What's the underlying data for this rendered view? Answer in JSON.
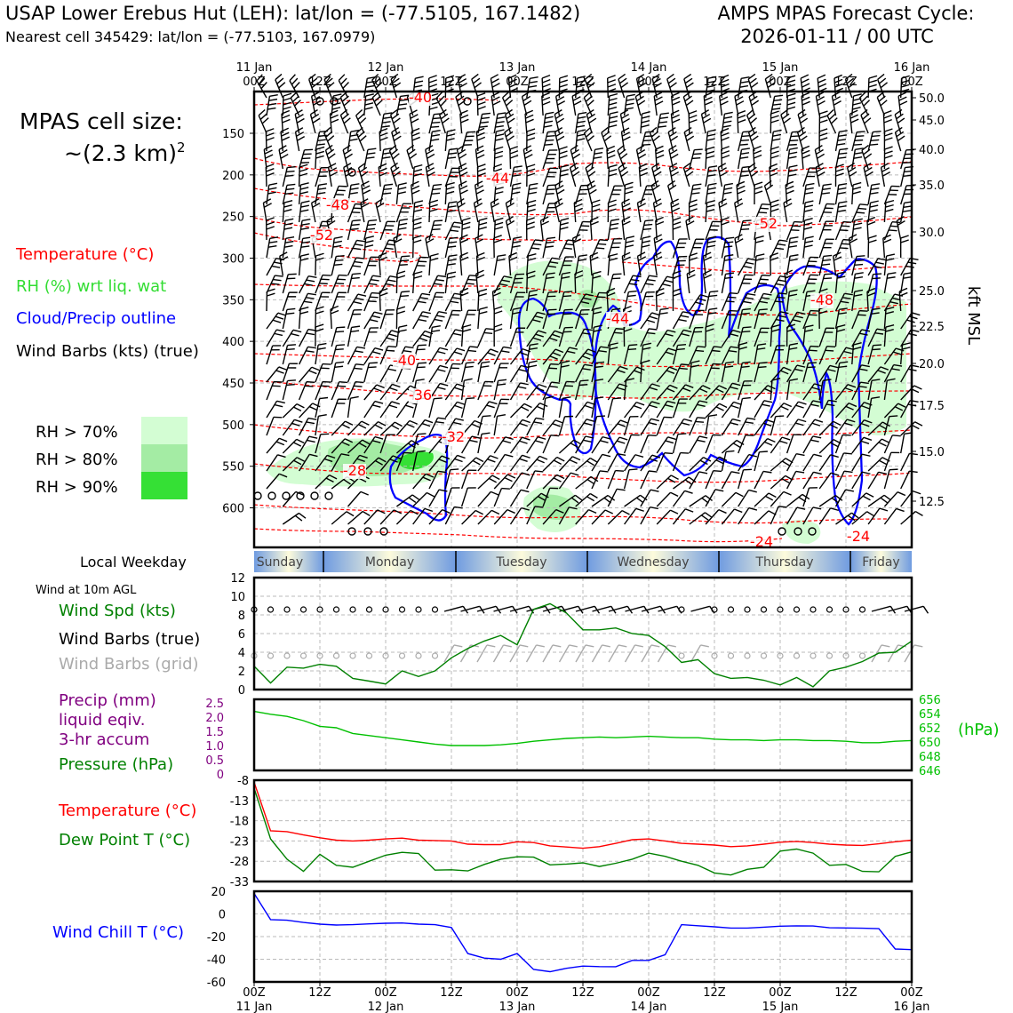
{
  "header": {
    "title_left": "USAP Lower Erebus Hut (LEH): lat/lon = (-77.5105, 167.1482)",
    "subtitle_left": "Nearest cell 345429: lat/lon = (-77.5103, 167.0979)",
    "title_right_1": "AMPS MPAS Forecast Cycle:",
    "title_right_2": "2026-01-11 / 00 UTC"
  },
  "cell_size": {
    "line1": "MPAS cell size:",
    "line2": "~(2.3 km)",
    "sup": "2"
  },
  "legend_top": {
    "temperature": "Temperature (°C)",
    "rh": "RH (%) wrt liq. wat",
    "cloud": "Cloud/Precip outline",
    "barbs": "Wind Barbs (kts) (true)"
  },
  "rh_legend": [
    {
      "label": "RH > 70%",
      "color": "#d3fdd3"
    },
    {
      "label": "RH > 80%",
      "color": "#a4eca4"
    },
    {
      "label": "RH > 90%",
      "color": "#35e035"
    }
  ],
  "colors": {
    "temp": "#ff0000",
    "rh": "#33dd33",
    "cloud": "#0000ff",
    "green": "#008000",
    "purple": "#800080",
    "gray": "#aaaaaa",
    "pressure_axis": "#00c000",
    "windchill": "#0000ff"
  },
  "time_axis": {
    "top_dates": [
      "11 Jan\n00Z",
      "",
      "12 Jan\n00Z",
      "",
      "13 Jan\n00Z",
      "",
      "14 Jan\n00Z",
      "",
      "15 Jan\n00Z",
      "",
      "16 Jan\n00Z"
    ],
    "top_hours": [
      "00Z",
      "12Z",
      "00Z",
      "12Z",
      "00Z",
      "12Z",
      "00Z",
      "12Z",
      "00Z",
      "12Z",
      "00Z"
    ],
    "bottom_hours": [
      "00Z",
      "12Z",
      "00Z",
      "12Z",
      "00Z",
      "12Z",
      "00Z",
      "12Z",
      "00Z",
      "12Z",
      "00Z"
    ],
    "date_labels": [
      "11 Jan",
      "12 Jan",
      "13 Jan",
      "14 Jan",
      "15 Jan",
      "16 Jan"
    ]
  },
  "weekday": {
    "title": "Local Weekday",
    "days": [
      "Sunday",
      "Monday",
      "Tuesday",
      "Wednesday",
      "Thursday",
      "Friday"
    ]
  },
  "sfc_labels": {
    "wind_at": "Wind at 10m AGL",
    "spd": "Wind Spd (kts)",
    "barbs": "Wind Barbs (true)",
    "barbs_grid": "Wind Barbs (grid)",
    "precip1": "Precip (mm)",
    "precip2": "liquid eqiv.",
    "precip3": "3-hr accum",
    "pressure": "Pressure (hPa)",
    "hpa": "(hPa)",
    "temp": "Temperature (°C)",
    "dew": "Dew Point T (°C)",
    "windchill": "Wind Chill T (°C)"
  },
  "chart_data": [
    {
      "type": "heatmap",
      "name": "time-height cross section",
      "y_left_ticks_hpa": [
        150,
        200,
        250,
        300,
        350,
        400,
        450,
        500,
        550,
        600
      ],
      "y_right_ticks_kft": [
        "50.0",
        "45.0",
        "40.0",
        "35.0",
        "30.0",
        "25.0",
        "22.5",
        "20.0",
        "17.5",
        "15.0",
        "12.5"
      ],
      "y_right_label": "kft MSL",
      "temperature_contour_labels": [
        "-40",
        "-44",
        "-48",
        "-52",
        "-52",
        "-44",
        "-48",
        "-40",
        "-36",
        "-32",
        "-28",
        "-24",
        "-24"
      ]
    },
    {
      "type": "line",
      "name": "wind speed",
      "x_hours": [
        0,
        3,
        6,
        9,
        12,
        15,
        18,
        21,
        24,
        27,
        30,
        33,
        36,
        39,
        42,
        45,
        48,
        51,
        54,
        57,
        60,
        63,
        66,
        69,
        72,
        75,
        78,
        81,
        84,
        87,
        90,
        93,
        96,
        99,
        102,
        105,
        108,
        111,
        114,
        117,
        120
      ],
      "values": [
        2.5,
        0.7,
        2.4,
        2.3,
        2.7,
        2.5,
        1.2,
        0.9,
        0.6,
        2.0,
        1.4,
        2.0,
        3.4,
        4.4,
        5.2,
        5.8,
        4.8,
        8.6,
        9.2,
        8.2,
        6.4,
        6.4,
        6.6,
        6.0,
        5.8,
        4.6,
        2.9,
        3.2,
        1.7,
        1.2,
        1.3,
        1.0,
        0.5,
        1.3,
        0.3,
        2.0,
        2.4,
        3.0,
        3.9,
        4.0,
        5.2
      ],
      "ylim": [
        0,
        12
      ],
      "yticks": [
        0,
        2,
        4,
        6,
        8,
        10,
        12
      ]
    },
    {
      "type": "line",
      "name": "pressure",
      "x_hours": [
        0,
        3,
        6,
        9,
        12,
        15,
        18,
        21,
        24,
        27,
        30,
        33,
        36,
        39,
        42,
        45,
        48,
        51,
        54,
        57,
        60,
        63,
        66,
        69,
        72,
        75,
        78,
        81,
        84,
        87,
        90,
        93,
        96,
        99,
        102,
        105,
        108,
        111,
        114,
        117,
        120
      ],
      "values": [
        654.3,
        653.9,
        653.6,
        653.0,
        652.2,
        652.0,
        651.2,
        650.9,
        650.6,
        650.3,
        650.0,
        649.7,
        649.5,
        649.5,
        649.5,
        649.6,
        649.8,
        650.1,
        650.3,
        650.5,
        650.6,
        650.7,
        650.6,
        650.7,
        650.8,
        650.7,
        650.6,
        650.6,
        650.4,
        650.3,
        650.3,
        650.2,
        650.3,
        650.3,
        650.2,
        650.2,
        650.1,
        649.9,
        649.9,
        650.1,
        650.2
      ],
      "ylim": [
        646,
        656
      ],
      "yticks_right": [
        656,
        654,
        652,
        650,
        648,
        646
      ],
      "precip_yticks_left": [
        "2.5",
        "2.0",
        "1.5",
        "1.0",
        "0.5",
        "0"
      ]
    },
    {
      "type": "line",
      "name": "temperature and dew point",
      "x_hours": [
        0,
        3,
        6,
        9,
        12,
        15,
        18,
        21,
        24,
        27,
        30,
        33,
        36,
        39,
        42,
        45,
        48,
        51,
        54,
        57,
        60,
        63,
        66,
        69,
        72,
        75,
        78,
        81,
        84,
        87,
        90,
        93,
        96,
        99,
        102,
        105,
        108,
        111,
        114,
        117,
        120
      ],
      "series": [
        {
          "name": "Temperature (°C)",
          "values": [
            -8.5,
            -20.5,
            -20.7,
            -21.5,
            -22.2,
            -22.8,
            -23.0,
            -22.8,
            -22.5,
            -22.3,
            -22.8,
            -22.9,
            -23.0,
            -23.8,
            -23.9,
            -23.9,
            -23.2,
            -23.4,
            -24.2,
            -24.5,
            -24.8,
            -24.4,
            -23.6,
            -22.7,
            -22.5,
            -23.0,
            -23.6,
            -23.8,
            -24.0,
            -24.4,
            -24.2,
            -23.8,
            -23.3,
            -23.1,
            -23.4,
            -23.8,
            -24.0,
            -24.1,
            -23.7,
            -23.2,
            -22.8
          ],
          "color": "#ff0000"
        },
        {
          "name": "Dew Point T (°C)",
          "values": [
            -10.0,
            -22.5,
            -27.5,
            -30.5,
            -26.3,
            -29.0,
            -29.5,
            -28.0,
            -26.5,
            -25.8,
            -26.1,
            -30.2,
            -30.1,
            -30.4,
            -28.8,
            -27.5,
            -26.9,
            -27.0,
            -28.9,
            -28.7,
            -28.4,
            -29.3,
            -28.5,
            -27.5,
            -26.0,
            -26.8,
            -28.0,
            -29.0,
            -30.9,
            -31.4,
            -30.0,
            -29.5,
            -25.5,
            -25.0,
            -26.0,
            -29.0,
            -28.8,
            -30.5,
            -30.6,
            -26.8,
            -25.7
          ],
          "color": "#008000"
        }
      ],
      "ylim": [
        -33,
        -8
      ],
      "yticks": [
        -8,
        -13,
        -18,
        -23,
        -28,
        -33
      ]
    },
    {
      "type": "line",
      "name": "wind chill",
      "x_hours": [
        0,
        3,
        6,
        9,
        12,
        15,
        18,
        21,
        24,
        27,
        30,
        33,
        36,
        39,
        42,
        45,
        48,
        51,
        54,
        57,
        60,
        63,
        66,
        69,
        72,
        75,
        78,
        81,
        84,
        87,
        90,
        93,
        96,
        99,
        102,
        105,
        108,
        111,
        114,
        117,
        120
      ],
      "values": [
        18,
        -5,
        -5.6,
        -7.5,
        -9,
        -9.8,
        -9.5,
        -8.8,
        -8.2,
        -8.0,
        -9.0,
        -9.5,
        -12,
        -35,
        -39,
        -40,
        -35,
        -49,
        -51,
        -48,
        -46,
        -46.5,
        -46.6,
        -41,
        -41,
        -36,
        -9.5,
        -10.4,
        -11.4,
        -12.5,
        -12.5,
        -11.7,
        -10.8,
        -10.5,
        -10.7,
        -12.2,
        -12.4,
        -12.6,
        -13,
        -31,
        -31.5
      ],
      "ylim": [
        -60,
        20
      ],
      "yticks": [
        20,
        0,
        -20,
        -40,
        -60
      ]
    }
  ]
}
